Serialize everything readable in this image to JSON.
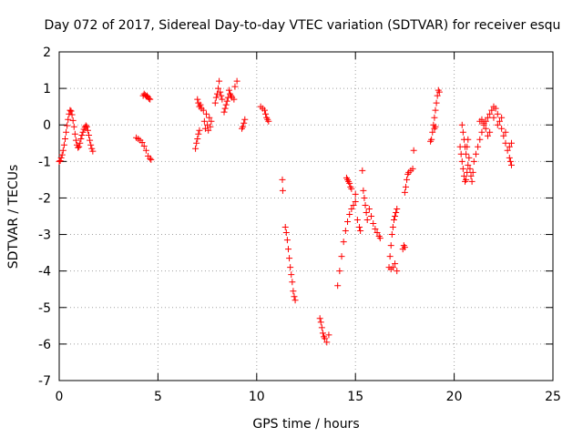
{
  "chart_data": {
    "type": "scatter",
    "title": "Day 072 of 2017, Sidereal Day-to-day VTEC variation (SDTVAR) for receiver esqu",
    "xlabel": "GPS time / hours",
    "ylabel": "SDTVAR / TECUs",
    "xlim": [
      0,
      25
    ],
    "ylim": [
      -7,
      2
    ],
    "xticks": [
      0,
      5,
      10,
      15,
      20,
      25
    ],
    "yticks": [
      -7,
      -6,
      -5,
      -4,
      -3,
      -2,
      -1,
      0,
      1,
      2
    ],
    "grid": true,
    "marker": "+",
    "color": "#ff0000",
    "points": [
      [
        0.0,
        -1.0
      ],
      [
        0.05,
        -0.98
      ],
      [
        0.1,
        -0.9
      ],
      [
        0.15,
        -0.82
      ],
      [
        0.2,
        -0.7
      ],
      [
        0.25,
        -0.55
      ],
      [
        0.3,
        -0.38
      ],
      [
        0.35,
        -0.2
      ],
      [
        0.4,
        -0.02
      ],
      [
        0.45,
        0.15
      ],
      [
        0.5,
        0.3
      ],
      [
        0.55,
        0.4
      ],
      [
        0.6,
        0.38
      ],
      [
        0.65,
        0.28
      ],
      [
        0.7,
        0.12
      ],
      [
        0.75,
        -0.05
      ],
      [
        0.8,
        -0.25
      ],
      [
        0.85,
        -0.42
      ],
      [
        0.9,
        -0.55
      ],
      [
        0.95,
        -0.62
      ],
      [
        1.0,
        -0.6
      ],
      [
        1.05,
        -0.5
      ],
      [
        1.1,
        -0.38
      ],
      [
        1.15,
        -0.28
      ],
      [
        1.2,
        -0.2
      ],
      [
        1.25,
        -0.12
      ],
      [
        1.3,
        -0.06
      ],
      [
        1.35,
        -0.02
      ],
      [
        1.4,
        -0.05
      ],
      [
        1.45,
        -0.15
      ],
      [
        1.5,
        -0.28
      ],
      [
        1.55,
        -0.42
      ],
      [
        1.6,
        -0.55
      ],
      [
        1.65,
        -0.65
      ],
      [
        1.7,
        -0.72
      ],
      [
        3.9,
        -0.35
      ],
      [
        4.0,
        -0.38
      ],
      [
        4.1,
        -0.42
      ],
      [
        4.2,
        -0.48
      ],
      [
        4.3,
        -0.58
      ],
      [
        4.4,
        -0.7
      ],
      [
        4.5,
        -0.85
      ],
      [
        4.6,
        -0.92
      ],
      [
        4.65,
        -0.95
      ],
      [
        4.25,
        0.8
      ],
      [
        4.3,
        0.85
      ],
      [
        4.35,
        0.82
      ],
      [
        4.4,
        0.78
      ],
      [
        4.45,
        0.8
      ],
      [
        4.5,
        0.76
      ],
      [
        4.55,
        0.72
      ],
      [
        4.6,
        0.7
      ],
      [
        6.9,
        -0.65
      ],
      [
        6.95,
        -0.5
      ],
      [
        7.0,
        -0.38
      ],
      [
        7.05,
        -0.25
      ],
      [
        7.1,
        -0.15
      ],
      [
        7.0,
        0.7
      ],
      [
        7.05,
        0.6
      ],
      [
        7.1,
        0.5
      ],
      [
        7.15,
        0.55
      ],
      [
        7.2,
        0.45
      ],
      [
        7.3,
        0.4
      ],
      [
        7.35,
        0.1
      ],
      [
        7.4,
        -0.1
      ],
      [
        7.45,
        0.3
      ],
      [
        7.5,
        0.0
      ],
      [
        7.55,
        -0.15
      ],
      [
        7.6,
        0.2
      ],
      [
        7.65,
        -0.05
      ],
      [
        7.7,
        0.1
      ],
      [
        7.9,
        0.6
      ],
      [
        7.95,
        0.75
      ],
      [
        8.0,
        0.85
      ],
      [
        8.05,
        1.0
      ],
      [
        8.1,
        1.2
      ],
      [
        8.15,
        0.9
      ],
      [
        8.2,
        0.8
      ],
      [
        8.25,
        0.7
      ],
      [
        8.35,
        0.35
      ],
      [
        8.4,
        0.45
      ],
      [
        8.45,
        0.55
      ],
      [
        8.5,
        0.65
      ],
      [
        8.55,
        0.75
      ],
      [
        8.6,
        0.95
      ],
      [
        8.65,
        0.85
      ],
      [
        8.7,
        0.8
      ],
      [
        8.75,
        0.75
      ],
      [
        8.85,
        0.7
      ],
      [
        8.9,
        1.05
      ],
      [
        9.0,
        1.2
      ],
      [
        9.25,
        -0.1
      ],
      [
        9.3,
        -0.05
      ],
      [
        9.35,
        0.05
      ],
      [
        9.4,
        0.15
      ],
      [
        10.2,
        0.5
      ],
      [
        10.3,
        0.45
      ],
      [
        10.4,
        0.4
      ],
      [
        10.45,
        0.3
      ],
      [
        10.5,
        0.2
      ],
      [
        10.55,
        0.15
      ],
      [
        10.6,
        0.1
      ],
      [
        11.3,
        -1.5
      ],
      [
        11.32,
        -1.8
      ],
      [
        11.45,
        -2.8
      ],
      [
        11.5,
        -2.95
      ],
      [
        11.55,
        -3.15
      ],
      [
        11.6,
        -3.4
      ],
      [
        11.65,
        -3.65
      ],
      [
        11.7,
        -3.9
      ],
      [
        11.75,
        -4.1
      ],
      [
        11.8,
        -4.3
      ],
      [
        11.85,
        -4.55
      ],
      [
        11.9,
        -4.7
      ],
      [
        11.95,
        -4.8
      ],
      [
        13.2,
        -5.3
      ],
      [
        13.25,
        -5.4
      ],
      [
        13.3,
        -5.55
      ],
      [
        13.35,
        -5.7
      ],
      [
        13.4,
        -5.8
      ],
      [
        13.45,
        -5.85
      ],
      [
        13.55,
        -5.95
      ],
      [
        13.65,
        -5.75
      ],
      [
        14.1,
        -4.4
      ],
      [
        14.2,
        -4.0
      ],
      [
        14.3,
        -3.6
      ],
      [
        14.4,
        -3.2
      ],
      [
        14.5,
        -2.9
      ],
      [
        14.6,
        -2.65
      ],
      [
        14.7,
        -2.45
      ],
      [
        14.8,
        -2.3
      ],
      [
        14.9,
        -2.2
      ],
      [
        15.0,
        -2.1
      ],
      [
        14.55,
        -1.45
      ],
      [
        14.6,
        -1.5
      ],
      [
        14.65,
        -1.55
      ],
      [
        14.7,
        -1.6
      ],
      [
        14.75,
        -1.7
      ],
      [
        14.8,
        -1.75
      ],
      [
        15.0,
        -1.9
      ],
      [
        15.1,
        -2.6
      ],
      [
        15.2,
        -2.8
      ],
      [
        15.25,
        -2.9
      ],
      [
        15.35,
        -1.25
      ],
      [
        15.4,
        -1.8
      ],
      [
        15.45,
        -2.0
      ],
      [
        15.5,
        -2.2
      ],
      [
        15.55,
        -2.4
      ],
      [
        15.6,
        -2.6
      ],
      [
        15.7,
        -2.3
      ],
      [
        15.8,
        -2.5
      ],
      [
        15.9,
        -2.7
      ],
      [
        16.0,
        -2.85
      ],
      [
        16.1,
        -2.95
      ],
      [
        16.2,
        -3.05
      ],
      [
        16.25,
        -3.1
      ],
      [
        16.7,
        -3.9
      ],
      [
        16.75,
        -3.6
      ],
      [
        16.8,
        -3.3
      ],
      [
        16.85,
        -3.0
      ],
      [
        16.9,
        -2.8
      ],
      [
        16.95,
        -2.6
      ],
      [
        17.0,
        -2.5
      ],
      [
        17.05,
        -2.4
      ],
      [
        17.1,
        -2.3
      ],
      [
        16.8,
        -3.95
      ],
      [
        16.9,
        -3.9
      ],
      [
        17.0,
        -3.8
      ],
      [
        17.1,
        -4.0
      ],
      [
        17.4,
        -3.4
      ],
      [
        17.45,
        -3.3
      ],
      [
        17.5,
        -3.35
      ],
      [
        17.5,
        -1.85
      ],
      [
        17.55,
        -1.7
      ],
      [
        17.6,
        -1.5
      ],
      [
        17.65,
        -1.35
      ],
      [
        17.7,
        -1.3
      ],
      [
        17.8,
        -1.25
      ],
      [
        17.9,
        -1.2
      ],
      [
        17.95,
        -0.7
      ],
      [
        18.8,
        -0.45
      ],
      [
        18.85,
        -0.4
      ],
      [
        18.9,
        -0.2
      ],
      [
        18.95,
        0.0
      ],
      [
        19.0,
        0.2
      ],
      [
        19.05,
        0.4
      ],
      [
        19.1,
        0.6
      ],
      [
        19.15,
        0.8
      ],
      [
        19.2,
        0.95
      ],
      [
        19.25,
        0.9
      ],
      [
        19.0,
        -0.1
      ],
      [
        19.05,
        -0.05
      ],
      [
        20.3,
        -0.6
      ],
      [
        20.35,
        -0.8
      ],
      [
        20.4,
        -1.0
      ],
      [
        20.45,
        -1.2
      ],
      [
        20.5,
        -1.4
      ],
      [
        20.55,
        -1.55
      ],
      [
        20.6,
        -1.5
      ],
      [
        20.65,
        -1.3
      ],
      [
        20.7,
        -1.1
      ],
      [
        20.75,
        -0.9
      ],
      [
        20.8,
        -1.2
      ],
      [
        20.85,
        -1.4
      ],
      [
        20.9,
        -1.55
      ],
      [
        20.95,
        -1.3
      ],
      [
        21.0,
        -1.0
      ],
      [
        20.4,
        0.0
      ],
      [
        20.45,
        -0.2
      ],
      [
        20.5,
        -0.4
      ],
      [
        20.55,
        -0.6
      ],
      [
        20.6,
        -0.8
      ],
      [
        20.65,
        -0.6
      ],
      [
        20.7,
        -0.4
      ],
      [
        21.1,
        -0.8
      ],
      [
        21.2,
        -0.6
      ],
      [
        21.3,
        -0.4
      ],
      [
        21.4,
        -0.2
      ],
      [
        21.5,
        0.0
      ],
      [
        21.6,
        0.1
      ],
      [
        21.7,
        0.2
      ],
      [
        21.8,
        0.3
      ],
      [
        21.9,
        0.4
      ],
      [
        22.0,
        0.5
      ],
      [
        22.1,
        0.45
      ],
      [
        22.2,
        0.3
      ],
      [
        22.3,
        0.1
      ],
      [
        22.4,
        -0.1
      ],
      [
        22.5,
        -0.3
      ],
      [
        22.6,
        -0.5
      ],
      [
        22.7,
        -0.7
      ],
      [
        22.8,
        -0.9
      ],
      [
        22.85,
        -1.0
      ],
      [
        22.9,
        -1.1
      ],
      [
        21.3,
        0.1
      ],
      [
        21.4,
        0.15
      ],
      [
        21.5,
        0.05
      ],
      [
        21.6,
        -0.1
      ],
      [
        21.7,
        -0.3
      ],
      [
        21.8,
        -0.2
      ],
      [
        22.0,
        0.2
      ],
      [
        22.2,
        0.0
      ],
      [
        22.4,
        0.2
      ],
      [
        22.6,
        -0.2
      ],
      [
        22.8,
        -0.6
      ],
      [
        22.9,
        -0.5
      ]
    ]
  }
}
